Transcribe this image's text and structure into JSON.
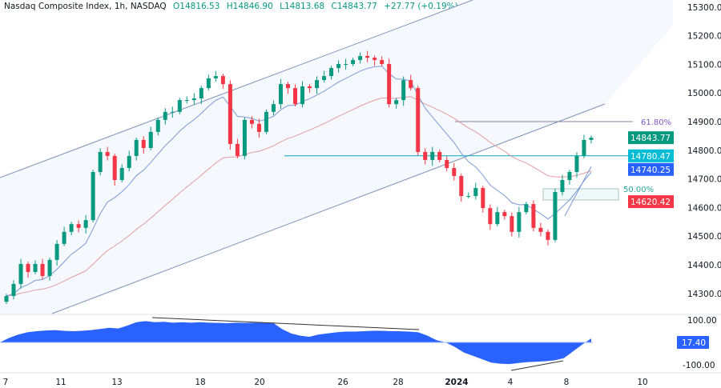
{
  "header": {
    "symbol": "Nasdaq Composite Index, 1h, NASDAQ",
    "open": "O14816.53",
    "high": "H14846.90",
    "low": "L14813.68",
    "close": "C14843.77",
    "change": "+27.77 (+0.19%)"
  },
  "colors": {
    "up": "#089981",
    "down": "#f23645",
    "fast_ma": "#7b9ad6",
    "slow_ma": "#e39ca2",
    "channel": "#7d93b8",
    "oscillator": "#2962ff",
    "fib": "#7e57c2",
    "level": "#00acc1"
  },
  "chart_data": [
    {
      "type": "candlestick",
      "title": "Nasdaq Composite Index, 1h, NASDAQ",
      "ylim": [
        14250,
        15320
      ],
      "yticks": [
        "15300.00",
        "15200.00",
        "15100.00",
        "15000.00",
        "14900.00",
        "14800.00",
        "14700.00",
        "14600.00",
        "14500.00",
        "14400.00",
        "14300.00"
      ],
      "xticks": [
        {
          "label": "7",
          "bold": false
        },
        {
          "label": "11",
          "bold": false
        },
        {
          "label": "13",
          "bold": false
        },
        {
          "label": "18",
          "bold": false
        },
        {
          "label": "20",
          "bold": false
        },
        {
          "label": "26",
          "bold": false
        },
        {
          "label": "28",
          "bold": false
        },
        {
          "label": "2024",
          "bold": true
        },
        {
          "label": "4",
          "bold": false
        },
        {
          "label": "8",
          "bold": false
        },
        {
          "label": "10",
          "bold": false
        }
      ],
      "close": [
        14291,
        14333,
        14403,
        14375,
        14403,
        14361,
        14417,
        14473,
        14515,
        14542,
        14529,
        14556,
        14724,
        14794,
        14780,
        14696,
        14738,
        14780,
        14836,
        14808,
        14864,
        14906,
        14934,
        14934,
        14975,
        14975,
        14981,
        15017,
        15051,
        15059,
        15031,
        14822,
        14780,
        14906,
        14892,
        14864,
        14934,
        14961,
        15031,
        15017,
        14961,
        15023,
        15017,
        15045,
        15059,
        15087,
        15101,
        15101,
        15115,
        15129,
        15123,
        15115,
        15101,
        14961,
        14975,
        15045,
        15017,
        14794,
        14766,
        14794,
        14766,
        14738,
        14710,
        14640,
        14640,
        14668,
        14598,
        14542,
        14584,
        14570,
        14515,
        14584,
        14612,
        14529,
        14515,
        14487,
        14654,
        14696,
        14724,
        14780,
        14836,
        14843.77
      ],
      "price_labels": [
        {
          "value": "14843.77",
          "color": "#089981",
          "price": 14843.77
        },
        {
          "value": "14780.47",
          "color": "#00bcd4",
          "price": 14780.47
        },
        {
          "value": "14740.25",
          "color": "#2962ff",
          "price": 14740.25
        },
        {
          "value": "14620.42",
          "color": "#f23645",
          "price": 14620.42
        }
      ],
      "fib_levels": [
        {
          "label": "61.80%",
          "price": 14900
        },
        {
          "label": "50.00%",
          "price": 14660
        }
      ],
      "horizontal_level": 14780.47
    },
    {
      "type": "area",
      "ylim": [
        -125,
        125
      ],
      "yticks": [
        "100.00",
        "-100.00"
      ],
      "current_value": "17.40",
      "values": [
        0,
        20,
        35,
        45,
        50,
        53,
        55,
        52,
        50,
        52,
        55,
        60,
        65,
        62,
        75,
        90,
        95,
        90,
        92,
        88,
        90,
        88,
        90,
        88,
        87,
        86,
        88,
        87,
        88,
        87,
        88,
        60,
        40,
        30,
        25,
        35,
        40,
        45,
        48,
        48,
        50,
        52,
        52,
        50,
        50,
        48,
        45,
        30,
        10,
        0,
        -20,
        -45,
        -60,
        -75,
        -90,
        -95,
        -97,
        -92,
        -88,
        -86,
        -84,
        -80,
        -70,
        -40,
        -10,
        17.4
      ]
    }
  ]
}
